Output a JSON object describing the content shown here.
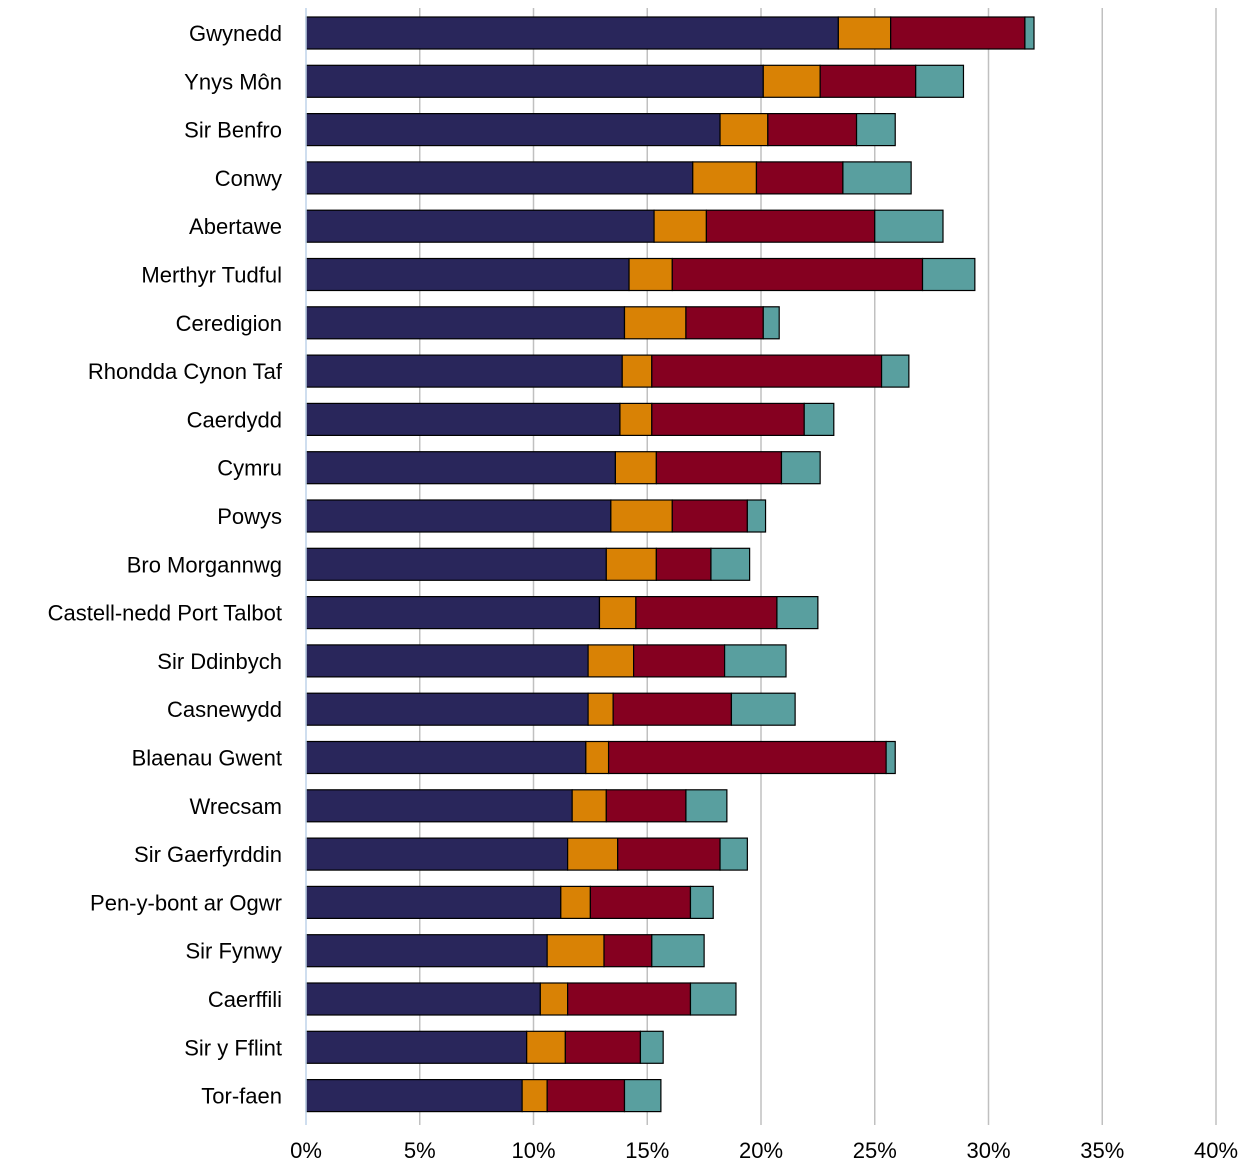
{
  "chart_data": {
    "type": "bar",
    "orientation": "horizontal",
    "stacked": true,
    "title": "",
    "xlabel": "",
    "ylabel": "",
    "xlim": [
      0,
      40
    ],
    "x_ticks": [
      "0%",
      "5%",
      "10%",
      "15%",
      "20%",
      "25%",
      "30%",
      "35%",
      "40%"
    ],
    "grid": "vertical",
    "legend": "none",
    "categories": [
      "Gwynedd",
      "Ynys Môn",
      "Sir Benfro",
      "Conwy",
      "Abertawe",
      "Merthyr Tudful",
      "Ceredigion",
      "Rhondda Cynon Taf",
      "Caerdydd",
      "Cymru",
      "Powys",
      "Bro Morgannwg",
      "Castell-nedd Port Talbot",
      "Sir Ddinbych",
      "Casnewydd",
      "Blaenau Gwent",
      "Wrecsam",
      "Sir Gaerfyrddin",
      "Pen-y-bont ar Ogwr",
      "Sir Fynwy",
      "Caerffili",
      "Sir y Fflint",
      "Tor-faen"
    ],
    "series": [
      {
        "color": "#29265b",
        "values": [
          23.4,
          20.1,
          18.2,
          17.0,
          15.3,
          14.2,
          14.0,
          13.9,
          13.8,
          13.6,
          13.4,
          13.2,
          12.9,
          12.4,
          12.4,
          12.3,
          11.7,
          11.5,
          11.2,
          10.6,
          10.3,
          9.7,
          9.5
        ]
      },
      {
        "color": "#d98205",
        "values": [
          2.3,
          2.5,
          2.1,
          2.8,
          2.3,
          1.9,
          2.7,
          1.3,
          1.4,
          1.8,
          2.7,
          2.2,
          1.6,
          2.0,
          1.1,
          1.0,
          1.5,
          2.2,
          1.3,
          2.5,
          1.2,
          1.7,
          1.1
        ]
      },
      {
        "color": "#850020",
        "values": [
          5.9,
          4.2,
          3.9,
          3.8,
          7.4,
          11.0,
          3.4,
          10.1,
          6.7,
          5.5,
          3.3,
          2.4,
          6.2,
          4.0,
          5.2,
          12.2,
          3.5,
          4.5,
          4.4,
          2.1,
          5.4,
          3.3,
          3.4
        ]
      },
      {
        "color": "#599f9f",
        "values": [
          0.4,
          2.1,
          1.7,
          3.0,
          3.0,
          2.3,
          0.7,
          1.2,
          1.3,
          1.7,
          0.8,
          1.7,
          1.8,
          2.7,
          2.8,
          0.4,
          1.8,
          1.2,
          1.0,
          2.3,
          2.0,
          1.0,
          1.6
        ]
      }
    ]
  }
}
